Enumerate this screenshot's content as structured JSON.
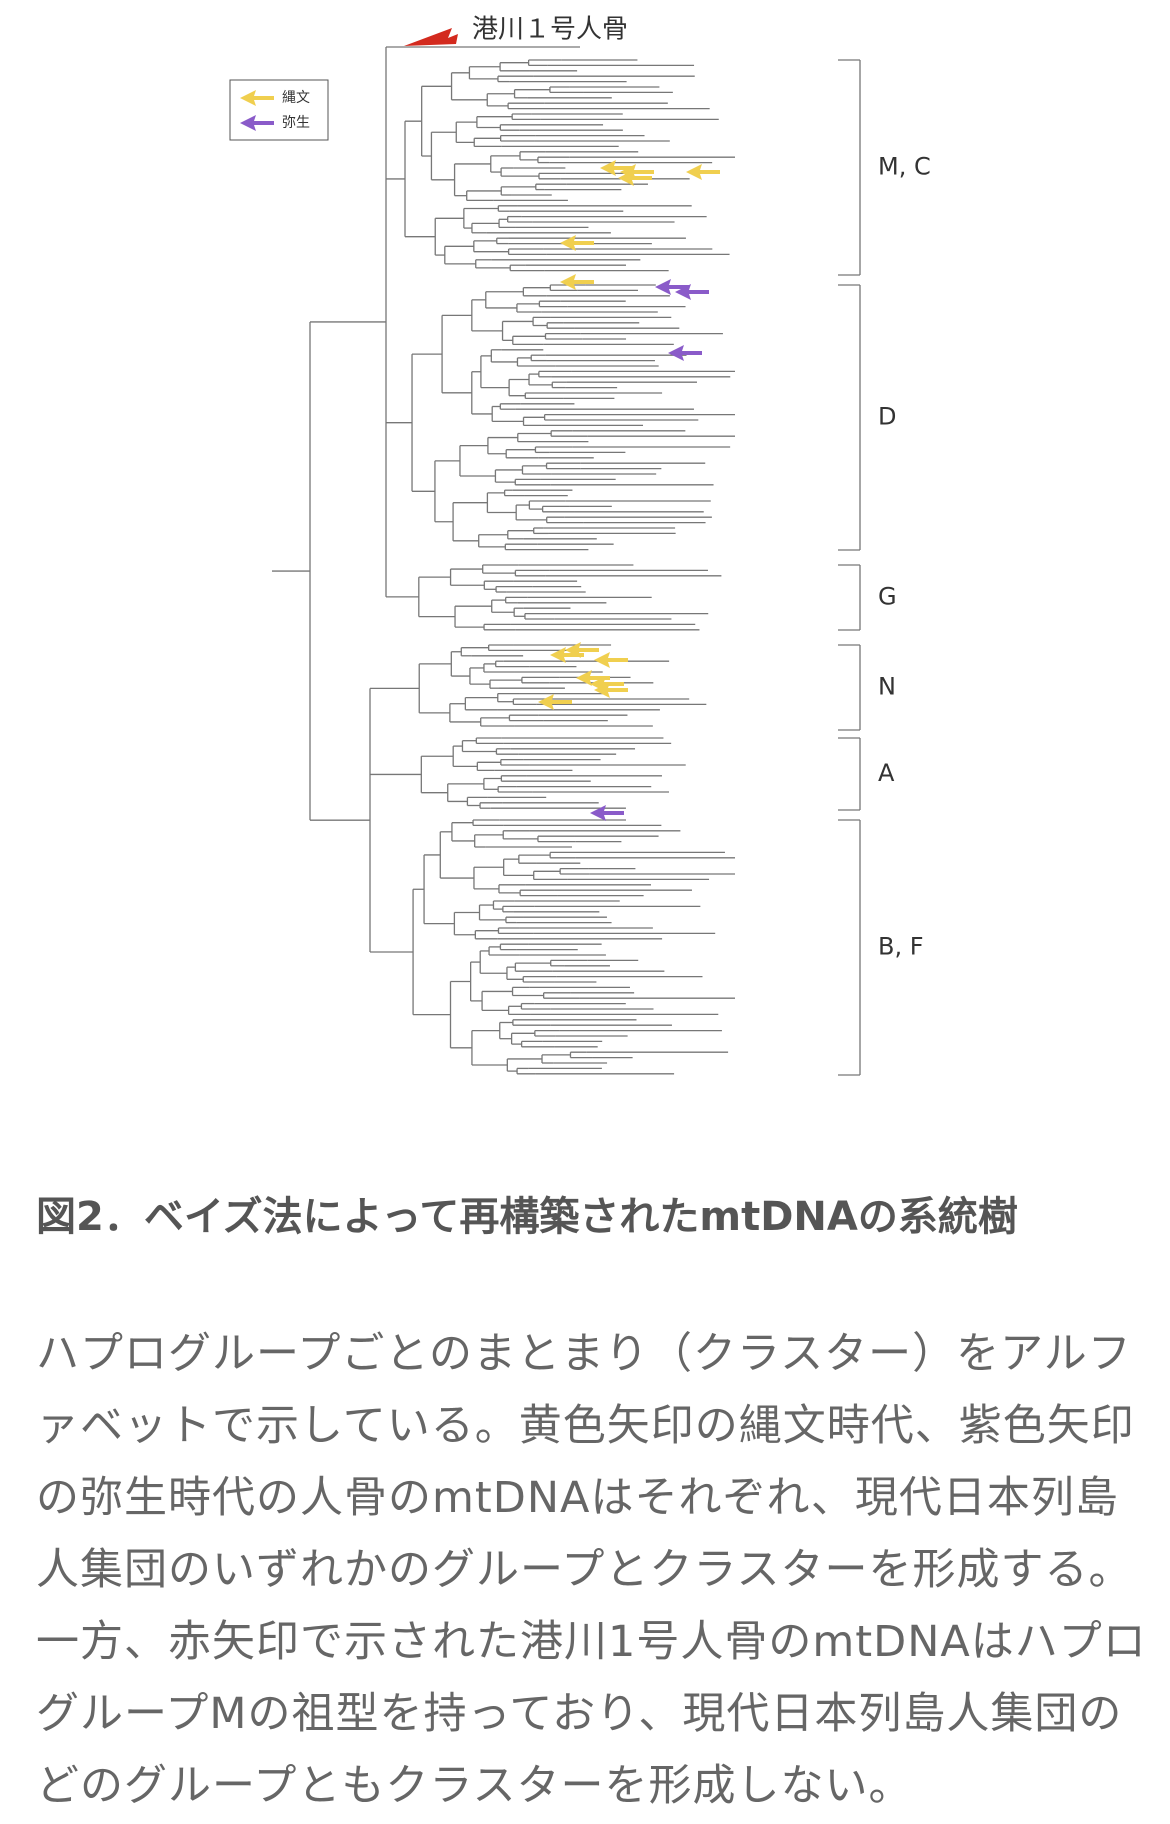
{
  "figure": {
    "specimen_label": "港川１号人骨",
    "legend": [
      "縄文",
      "弥生"
    ],
    "groups": [
      "M, C",
      "D",
      "G",
      "N",
      "A",
      "B, F"
    ]
  },
  "caption": "図2．ベイズ法によって再構築されたmtDNAの系統樹",
  "paragraph": "ハプログループごとのまとまり（クラスター）をアルファベットで示している。黄色矢印の縄文時代、紫色矢印の弥生時代の人骨のmtDNAはそれぞれ、現代日本列島人集団のいずれかのグループとクラスターを形成する。一方、赤矢印で示された港川1号人骨のmtDNAはハプログループMの祖型を持っており、現代日本列島人集団のどのグループともクラスターを形成しない。"
}
